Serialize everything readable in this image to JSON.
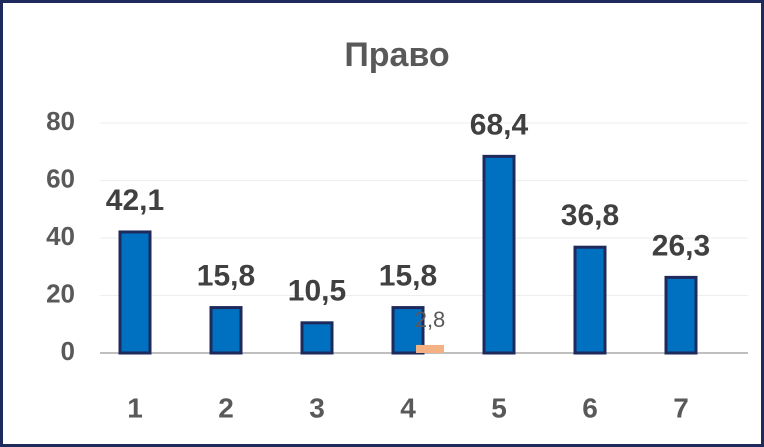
{
  "chart_data": {
    "type": "bar",
    "title": "Право",
    "categories": [
      "1",
      "2",
      "3",
      "4",
      "5",
      "6",
      "7"
    ],
    "series": [
      {
        "color": "#0070c0",
        "values": [
          42.1,
          15.8,
          10.5,
          15.8,
          68.4,
          36.8,
          26.3
        ],
        "value_labels": [
          "42,1",
          "15,8",
          "10,5",
          "15,8",
          "68,4",
          "36,8",
          "26,3"
        ]
      },
      {
        "color": "#f4b183",
        "values": [
          null,
          null,
          null,
          2.8,
          null,
          null,
          null
        ],
        "value_labels": [
          null,
          null,
          null,
          "2,8",
          null,
          null,
          null
        ]
      }
    ],
    "ylim": [
      0,
      80
    ],
    "yticks": [
      0,
      20,
      40,
      60,
      80
    ],
    "grid": true
  }
}
